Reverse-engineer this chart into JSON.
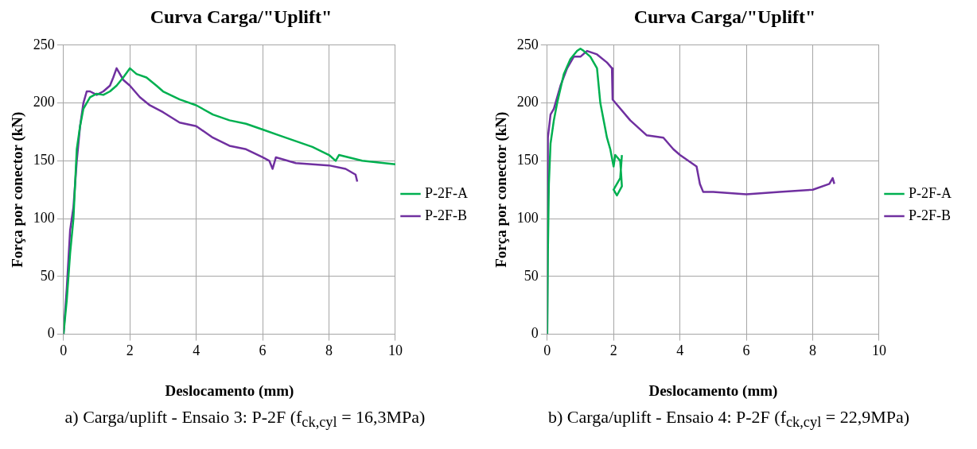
{
  "chart_data": [
    {
      "type": "line",
      "title": "Curva Carga/\"Uplift\"",
      "xlabel": "Deslocamento (mm)",
      "ylabel": "Força por conector (kN)",
      "xlim": [
        0,
        10
      ],
      "xticks": [
        0,
        2,
        4,
        6,
        8,
        10
      ],
      "ylim": [
        0,
        250
      ],
      "yticks": [
        0,
        50,
        100,
        150,
        200,
        250
      ],
      "grid": true,
      "legend": "right",
      "marker": "none",
      "line_style": "solid",
      "annotations": [
        "a) Carga/uplift - Ensaio 3: P-2F (f$_{ck,cyl}$ = 16,3MPa)"
      ],
      "series": [
        {
          "name": "P-2F-A",
          "color": "#00b050",
          "x": [
            0,
            0.1,
            0.2,
            0.3,
            0.35,
            0.4,
            0.5,
            0.6,
            0.8,
            1.0,
            1.2,
            1.4,
            1.6,
            1.8,
            2.0,
            2.2,
            2.5,
            2.8,
            3.0,
            3.5,
            4.0,
            4.5,
            5.0,
            5.5,
            6.0,
            6.5,
            7.0,
            7.5,
            8.0,
            8.2,
            8.3,
            9.0,
            10
          ],
          "values": [
            0,
            30,
            70,
            100,
            130,
            160,
            180,
            195,
            205,
            208,
            207,
            210,
            215,
            222,
            230,
            225,
            222,
            215,
            210,
            203,
            198,
            190,
            185,
            182,
            177,
            172,
            167,
            162,
            155,
            150,
            155,
            150,
            147
          ]
        },
        {
          "name": "P-2F-B",
          "color": "#7030a0",
          "x": [
            0,
            0.1,
            0.2,
            0.3,
            0.4,
            0.5,
            0.6,
            0.7,
            0.8,
            1.0,
            1.2,
            1.4,
            1.5,
            1.6,
            1.8,
            2.0,
            2.3,
            2.6,
            3.0,
            3.5,
            4.0,
            4.5,
            5.0,
            5.5,
            6.0,
            6.2,
            6.3,
            6.4,
            7.0,
            8.0,
            8.5,
            8.8,
            8.85
          ],
          "values": [
            0,
            40,
            90,
            110,
            150,
            180,
            200,
            210,
            210,
            207,
            210,
            215,
            222,
            230,
            220,
            215,
            205,
            198,
            192,
            183,
            180,
            170,
            163,
            160,
            153,
            150,
            143,
            153,
            148,
            146,
            143,
            138,
            132
          ]
        }
      ]
    },
    {
      "type": "line",
      "title": "Curva Carga/\"Uplift\"",
      "xlabel": "Deslocamento (mm)",
      "ylabel": "Força por conector (kN)",
      "xlim": [
        0,
        10
      ],
      "xticks": [
        0,
        2,
        4,
        6,
        8,
        10
      ],
      "ylim": [
        0,
        250
      ],
      "yticks": [
        0,
        50,
        100,
        150,
        200,
        250
      ],
      "grid": true,
      "legend": "right",
      "marker": "none",
      "line_style": "solid",
      "annotations": [
        "b) Carga/uplift - Ensaio 4: P-2F (f$_{ck,cyl}$ = 22,9MPa)"
      ],
      "series": [
        {
          "name": "P-2F-A",
          "color": "#00b050",
          "x": [
            0,
            0.02,
            0.05,
            0.1,
            0.2,
            0.3,
            0.5,
            0.7,
            0.9,
            1.0,
            1.1,
            1.3,
            1.5,
            1.6,
            1.8,
            1.9,
            2.0,
            2.05,
            2.2,
            2.25,
            2.1,
            2.0,
            2.2,
            2.25
          ],
          "values": [
            0,
            70,
            130,
            165,
            185,
            200,
            225,
            238,
            245,
            247,
            245,
            240,
            230,
            200,
            170,
            160,
            145,
            155,
            150,
            128,
            120,
            125,
            135,
            155
          ]
        },
        {
          "name": "P-2F-B",
          "color": "#7030a0",
          "x": [
            0,
            0.02,
            0.1,
            0.2,
            0.4,
            0.6,
            0.8,
            1.0,
            1.2,
            1.5,
            1.8,
            1.95,
            1.97,
            2.5,
            3.0,
            3.5,
            3.8,
            4.0,
            4.5,
            4.6,
            4.7,
            5.0,
            6.0,
            7.0,
            8.0,
            8.5,
            8.6,
            8.65
          ],
          "values": [
            0,
            170,
            190,
            195,
            215,
            230,
            240,
            240,
            245,
            242,
            235,
            230,
            203,
            185,
            172,
            170,
            160,
            155,
            145,
            130,
            123,
            123,
            121,
            123,
            125,
            130,
            135,
            130
          ]
        }
      ]
    }
  ]
}
